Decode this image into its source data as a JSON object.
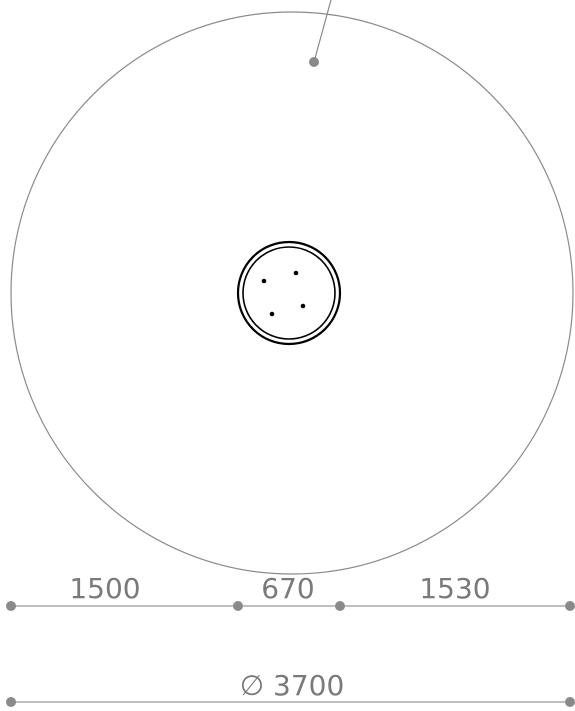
{
  "dimensions": {
    "segments": [
      "1500",
      "670",
      "1530"
    ],
    "overall": "∅ 3700"
  }
}
